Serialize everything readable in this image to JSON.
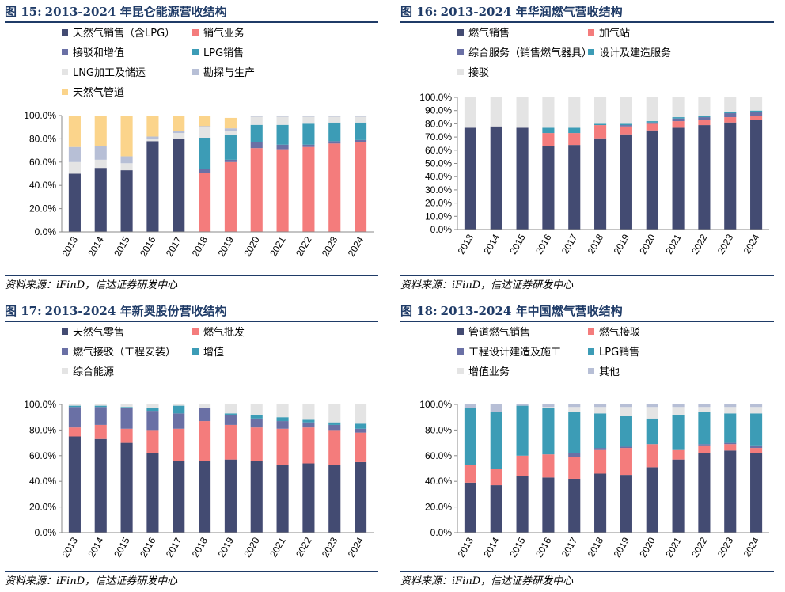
{
  "charts": [
    {
      "fig_label": "图 15:",
      "title": "2013-2024 年昆仑能源营收结构",
      "source": "资料来源：iFinD，信达证券研发中心",
      "legend": [
        {
          "label": "天然气销售（含LPG）",
          "color": "#434b72"
        },
        {
          "label": "销气业务",
          "color": "#f47c7c"
        },
        {
          "label": "接驳和增值",
          "color": "#6a70a5"
        },
        {
          "label": "LPG销售",
          "color": "#3c9cb6"
        },
        {
          "label": "LNG加工及储运",
          "color": "#e4e4e4"
        },
        {
          "label": "勘探与生产",
          "color": "#b7bfd6"
        },
        {
          "label": "天然气管道",
          "color": "#fbd48b"
        }
      ],
      "chart_data": {
        "type": "bar",
        "stacked": true,
        "categories": [
          "2013",
          "2014",
          "2015",
          "2016",
          "2017",
          "2018",
          "2019",
          "2020",
          "2021",
          "2022",
          "2023",
          "2024"
        ],
        "ylim": [
          0,
          100
        ],
        "yticks": [
          "0.0%",
          "20.0%",
          "40.0%",
          "60.0%",
          "80.0%",
          "100.0%"
        ],
        "series": [
          {
            "name": "天然气销售（含LPG）",
            "values": [
              50,
              55,
              53,
              78,
              80,
              0,
              0,
              0,
              0,
              0,
              0,
              0
            ]
          },
          {
            "name": "销气业务",
            "values": [
              0,
              0,
              0,
              0,
              0,
              51,
              60,
              72,
              71,
              73,
              76,
              77
            ]
          },
          {
            "name": "接驳和增值",
            "values": [
              0,
              0,
              0,
              0,
              0,
              3,
              2,
              5,
              4,
              2,
              2,
              2
            ]
          },
          {
            "name": "LPG销售",
            "values": [
              0,
              0,
              0,
              0,
              0,
              27,
              21,
              15,
              17,
              18,
              16,
              15
            ]
          },
          {
            "name": "LNG加工及储运",
            "values": [
              10,
              7,
              6,
              2,
              5,
              9,
              4,
              7,
              7,
              6,
              5,
              5
            ]
          },
          {
            "name": "勘探与生产",
            "values": [
              13,
              12,
              6,
              2,
              2,
              1,
              2,
              1,
              1,
              1,
              1,
              1
            ]
          },
          {
            "name": "天然气管道",
            "values": [
              27,
              26,
              35,
              18,
              13,
              9,
              9,
              0,
              0,
              0,
              0,
              0
            ]
          }
        ]
      }
    },
    {
      "fig_label": "图 16:",
      "title": "2013-2024 年华润燃气营收结构",
      "source": "资料来源：iFinD，信达证券研发中心",
      "legend": [
        {
          "label": "燃气销售",
          "color": "#434b72"
        },
        {
          "label": "加气站",
          "color": "#f47c7c"
        },
        {
          "label": "综合服务（销售燃气器具）",
          "color": "#6a70a5"
        },
        {
          "label": "设计及建造服务",
          "color": "#3c9cb6"
        },
        {
          "label": "接驳",
          "color": "#e4e4e4"
        }
      ],
      "chart_data": {
        "type": "bar",
        "stacked": true,
        "categories": [
          "2013",
          "2014",
          "2015",
          "2016",
          "2017",
          "2018",
          "2019",
          "2020",
          "2021",
          "2022",
          "2023",
          "2024"
        ],
        "ylim": [
          0,
          100
        ],
        "yticks": [
          "0.0%",
          "10.0%",
          "20.0%",
          "30.0%",
          "40.0%",
          "50.0%",
          "60.0%",
          "70.0%",
          "80.0%",
          "90.0%",
          "100.0%"
        ],
        "series": [
          {
            "name": "燃气销售",
            "values": [
              77,
              78,
              77,
              63,
              64,
              69,
              72,
              75,
              77,
              79,
              81,
              83
            ]
          },
          {
            "name": "加气站",
            "values": [
              0,
              0,
              0,
              10,
              9,
              10,
              6,
              5,
              5,
              4,
              4,
              3
            ]
          },
          {
            "name": "综合服务（销售燃气器具）",
            "values": [
              0,
              0,
              0,
              0,
              0,
              0,
              1,
              1,
              2,
              2,
              3,
              3
            ]
          },
          {
            "name": "设计及建造服务",
            "values": [
              0,
              0,
              0,
              4,
              4,
              1,
              1,
              1,
              1,
              1,
              1,
              1
            ]
          },
          {
            "name": "接驳",
            "values": [
              23,
              22,
              23,
              23,
              23,
              20,
              20,
              18,
              15,
              14,
              11,
              10
            ]
          }
        ]
      }
    },
    {
      "fig_label": "图 17:",
      "title": "2013-2024 年新奥股份营收结构",
      "source": "资料来源：iFinD，信达证券研发中心",
      "legend": [
        {
          "label": "天然气零售",
          "color": "#434b72"
        },
        {
          "label": "燃气批发",
          "color": "#f47c7c"
        },
        {
          "label": "燃气接驳（工程安装）",
          "color": "#6a70a5"
        },
        {
          "label": "增值",
          "color": "#3c9cb6"
        },
        {
          "label": "综合能源",
          "color": "#e4e4e4"
        }
      ],
      "chart_data": {
        "type": "bar",
        "stacked": true,
        "categories": [
          "2013",
          "2014",
          "2015",
          "2016",
          "2017",
          "2018",
          "2019",
          "2020",
          "2021",
          "2022",
          "2023",
          "2024"
        ],
        "ylim": [
          0,
          100
        ],
        "yticks": [
          "0.0%",
          "20.0%",
          "40.0%",
          "60.0%",
          "80.0%",
          "100.0%"
        ],
        "series": [
          {
            "name": "天然气零售",
            "values": [
              75,
              73,
              70,
              62,
              56,
              56,
              57,
              56,
              53,
              54,
              53,
              55
            ]
          },
          {
            "name": "燃气批发",
            "values": [
              7,
              11,
              11,
              18,
              25,
              31,
              27,
              26,
              28,
              28,
              27,
              23
            ]
          },
          {
            "name": "燃气接驳（工程安装）",
            "values": [
              16,
              14,
              16,
              15,
              12,
              10,
              8,
              7,
              6,
              4,
              4,
              3
            ]
          },
          {
            "name": "增值",
            "values": [
              1,
              1,
              1,
              2,
              6,
              0,
              1,
              3,
              3,
              2,
              2,
              4
            ]
          },
          {
            "name": "综合能源",
            "values": [
              1,
              1,
              2,
              3,
              1,
              3,
              7,
              8,
              10,
              12,
              14,
              15
            ]
          }
        ]
      }
    },
    {
      "fig_label": "图 18:",
      "title": "2013-2024 年中国燃气营收结构",
      "source": "资料来源：iFinD，信达证券研发中心",
      "legend": [
        {
          "label": "管道燃气销售",
          "color": "#434b72"
        },
        {
          "label": "燃气接驳",
          "color": "#f47c7c"
        },
        {
          "label": "工程设计建造及施工",
          "color": "#6a70a5"
        },
        {
          "label": "LPG销售",
          "color": "#3c9cb6"
        },
        {
          "label": "增值业务",
          "color": "#e4e4e4"
        },
        {
          "label": "其他",
          "color": "#b7bfd6"
        }
      ],
      "chart_data": {
        "type": "bar",
        "stacked": true,
        "categories": [
          "2013",
          "2014",
          "2015",
          "2016",
          "2017",
          "2018",
          "2019",
          "2020",
          "2021",
          "2022",
          "2023",
          "2024"
        ],
        "ylim": [
          0,
          100
        ],
        "yticks": [
          "0.0%",
          "20.0%",
          "40.0%",
          "60.0%",
          "80.0%",
          "100.0%"
        ],
        "series": [
          {
            "name": "管道燃气销售",
            "values": [
              39,
              37,
              44,
              43,
              42,
              46,
              45,
              51,
              57,
              62,
              64,
              62
            ]
          },
          {
            "name": "燃气接驳",
            "values": [
              14,
              13,
              16,
              18,
              17,
              19,
              21,
              18,
              8,
              6,
              5,
              4
            ]
          },
          {
            "name": "工程设计建造及施工",
            "values": [
              0,
              0,
              0,
              0,
              3,
              1,
              1,
              0,
              0,
              1,
              1,
              2
            ]
          },
          {
            "name": "LPG销售",
            "values": [
              44,
              44,
              39,
              36,
              32,
              27,
              24,
              20,
              27,
              25,
              23,
              25
            ]
          },
          {
            "name": "增值业务",
            "values": [
              0,
              0,
              0,
              1,
              4,
              5,
              7,
              9,
              6,
              4,
              5,
              5
            ]
          },
          {
            "name": "其他",
            "values": [
              3,
              6,
              1,
              2,
              2,
              2,
              2,
              2,
              2,
              2,
              2,
              2
            ]
          }
        ]
      }
    }
  ]
}
